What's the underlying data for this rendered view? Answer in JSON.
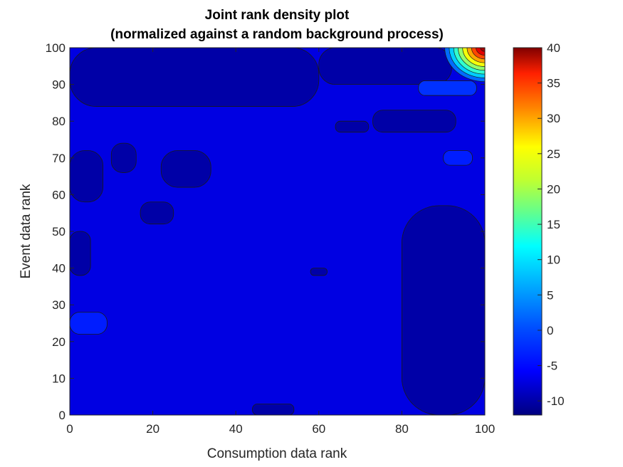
{
  "chart_data": {
    "type": "heatmap",
    "title": "Joint rank density plot",
    "subtitle": "(normalized against a random background process)",
    "xlabel": "Consumption data rank",
    "ylabel": "Event data rank",
    "xlim": [
      0,
      100
    ],
    "ylim": [
      0,
      100
    ],
    "x_ticks": [
      "0",
      "20",
      "40",
      "60",
      "80",
      "100"
    ],
    "y_ticks": [
      "0",
      "10",
      "20",
      "30",
      "40",
      "50",
      "60",
      "70",
      "80",
      "90",
      "100"
    ],
    "colorbar": {
      "range": [
        -12,
        40
      ],
      "ticks": [
        "-10",
        "-5",
        "0",
        "5",
        "10",
        "15",
        "20",
        "25",
        "30",
        "35",
        "40"
      ],
      "colormap": "jet"
    },
    "background_level": -7,
    "regions": [
      {
        "name": "top-left low band",
        "level": -10,
        "x": [
          0,
          60
        ],
        "y": [
          84,
          100
        ]
      },
      {
        "name": "top-middle low band",
        "level": -10,
        "x": [
          60,
          92
        ],
        "y": [
          90,
          100
        ]
      },
      {
        "name": "left low patch 70",
        "level": -10,
        "x": [
          0,
          8
        ],
        "y": [
          58,
          72
        ]
      },
      {
        "name": "patch 68",
        "level": -10,
        "x": [
          22,
          34
        ],
        "y": [
          62,
          72
        ]
      },
      {
        "name": "patch 72",
        "level": -10,
        "x": [
          10,
          16
        ],
        "y": [
          66,
          74
        ]
      },
      {
        "name": "patch 55",
        "level": -10,
        "x": [
          17,
          25
        ],
        "y": [
          52,
          58
        ]
      },
      {
        "name": "left patch 42",
        "level": -10,
        "x": [
          0,
          5
        ],
        "y": [
          38,
          50
        ]
      },
      {
        "name": "patch 79",
        "level": -10,
        "x": [
          73,
          93
        ],
        "y": [
          77,
          83
        ]
      },
      {
        "name": "patch 78",
        "level": -10,
        "x": [
          64,
          72
        ],
        "y": [
          77,
          80
        ]
      },
      {
        "name": "patch 39",
        "level": -10,
        "x": [
          58,
          62
        ],
        "y": [
          38,
          40
        ]
      },
      {
        "name": "right low region",
        "level": -10,
        "x": [
          80,
          100
        ],
        "y": [
          0,
          57
        ]
      },
      {
        "name": "bottom patch",
        "level": -10,
        "x": [
          44,
          54
        ],
        "y": [
          0,
          3
        ]
      },
      {
        "name": "patch 70 right",
        "level": -4,
        "x": [
          90,
          97
        ],
        "y": [
          68,
          72
        ]
      },
      {
        "name": "patch 89",
        "level": -3,
        "x": [
          84,
          98
        ],
        "y": [
          87,
          91
        ]
      },
      {
        "name": "left patch 26",
        "level": -4,
        "x": [
          0,
          9
        ],
        "y": [
          22,
          28
        ]
      },
      {
        "name": "corner peak",
        "level": 38,
        "x": [
          95,
          100
        ],
        "y": [
          94,
          100
        ]
      }
    ]
  }
}
